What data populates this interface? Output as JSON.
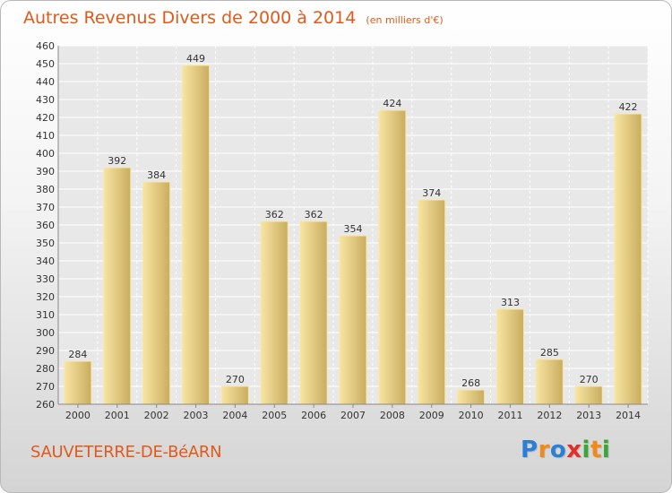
{
  "header": {
    "title": "Autres Revenus Divers de 2000 à 2014",
    "subtitle": "(en milliers d'€)"
  },
  "footer": {
    "town": "SAUVETERRE-DE-BéARN",
    "logo_letters": [
      "P",
      "r",
      "o",
      "x",
      "i",
      "t",
      "i"
    ],
    "logo_colors": [
      "#2b7fd4",
      "#f08a1c",
      "#2b7fd4",
      "#e0302a",
      "#3aa63a",
      "#f08a1c",
      "#3aa63a"
    ]
  },
  "chart_data": {
    "type": "bar",
    "title": "Autres Revenus Divers de 2000 à 2014",
    "categories": [
      "2000",
      "2001",
      "2002",
      "2003",
      "2004",
      "2005",
      "2006",
      "2007",
      "2008",
      "2009",
      "2010",
      "2011",
      "2012",
      "2013",
      "2014"
    ],
    "values": [
      284,
      392,
      384,
      449,
      270,
      362,
      362,
      354,
      424,
      374,
      268,
      313,
      285,
      270,
      422
    ],
    "ylim": [
      260,
      460
    ],
    "ytick_step": 10,
    "grid": true,
    "bar_color_light": "#f8e4a2",
    "bar_color_dark": "#c9ad5f"
  }
}
